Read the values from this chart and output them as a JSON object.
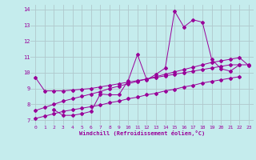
{
  "xlabel": "Windchill (Refroidissement éolien,°C)",
  "bg_color": "#c5eced",
  "grid_color": "#b0c8cc",
  "line_color": "#990099",
  "xlim": [
    -0.5,
    23.5
  ],
  "ylim": [
    6.7,
    14.3
  ],
  "xticks": [
    0,
    1,
    2,
    3,
    4,
    5,
    6,
    7,
    8,
    9,
    10,
    11,
    12,
    13,
    14,
    15,
    16,
    17,
    18,
    19,
    20,
    21,
    22,
    23
  ],
  "yticks": [
    7,
    8,
    9,
    10,
    11,
    12,
    13,
    14
  ],
  "series": [
    {
      "x": [
        0,
        1,
        2,
        3,
        4,
        5,
        6,
        7,
        8,
        9,
        10,
        11,
        12,
        13,
        14,
        15,
        16,
        17,
        18,
        19,
        20,
        21,
        22,
        23
      ],
      "y": [
        7.6,
        7.8,
        8.0,
        8.2,
        8.35,
        8.5,
        8.65,
        8.8,
        9.0,
        9.15,
        9.3,
        9.45,
        9.6,
        9.75,
        9.9,
        10.05,
        10.2,
        10.35,
        10.5,
        10.65,
        10.75,
        10.85,
        10.95,
        10.45
      ]
    },
    {
      "x": [
        0,
        1,
        2,
        3,
        4,
        5,
        6,
        7,
        8,
        9,
        10,
        11,
        12,
        13,
        14,
        15,
        16,
        17,
        18,
        19,
        20,
        21,
        22,
        23
      ],
      "y": [
        7.1,
        7.25,
        7.4,
        7.55,
        7.65,
        7.75,
        7.85,
        7.95,
        8.1,
        8.2,
        8.35,
        8.45,
        8.6,
        8.7,
        8.85,
        8.95,
        9.1,
        9.2,
        9.35,
        9.45,
        9.55,
        9.65,
        9.75,
        null
      ]
    },
    {
      "x": [
        0,
        1,
        2,
        3,
        4,
        5,
        6,
        7,
        8,
        9,
        10,
        11,
        12,
        13,
        14,
        15,
        16,
        17,
        18,
        19,
        20,
        21,
        22,
        23
      ],
      "y": [
        9.7,
        8.85,
        8.85,
        8.85,
        8.9,
        8.95,
        9.0,
        9.1,
        9.2,
        9.3,
        9.4,
        9.5,
        9.6,
        9.7,
        9.8,
        9.9,
        10.0,
        10.1,
        10.2,
        10.3,
        10.4,
        10.5,
        10.5,
        10.5
      ]
    },
    {
      "x": [
        2,
        3,
        4,
        5,
        6,
        7,
        8,
        9,
        10,
        11,
        12,
        13,
        14,
        15,
        16,
        17,
        18,
        19,
        20,
        21,
        22
      ],
      "y": [
        7.65,
        7.3,
        7.3,
        7.4,
        7.55,
        8.65,
        8.6,
        8.6,
        9.5,
        11.15,
        9.55,
        9.9,
        10.3,
        13.9,
        12.9,
        13.35,
        13.2,
        10.85,
        10.25,
        10.1,
        10.5
      ]
    }
  ]
}
